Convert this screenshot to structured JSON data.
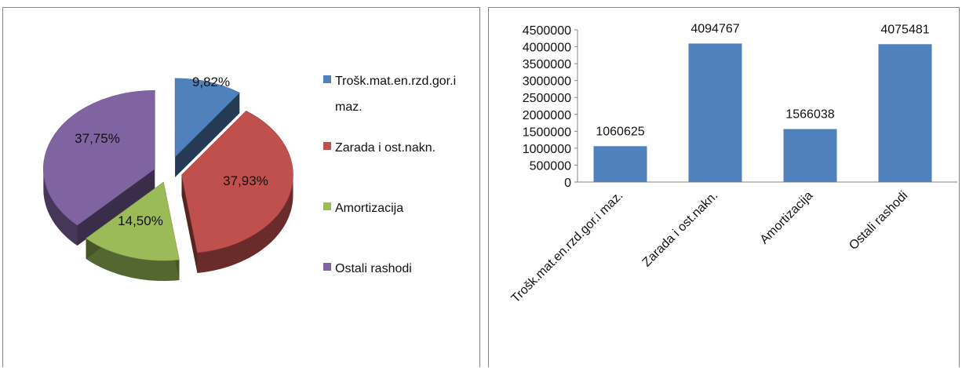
{
  "chart_data": [
    {
      "type": "pie",
      "style": "3d-exploded",
      "legend_position": "right",
      "categories": [
        "Trošk.mat.en.rzd.gor.i maz.",
        "Zarada i ost.nakn.",
        "Amortizacija",
        "Ostali rashodi"
      ],
      "legend_lines": [
        [
          "Trošk.mat.en.rzd.gor.i",
          "maz."
        ],
        [
          "Zarada i ost.nakn."
        ],
        [
          "Amortizacija"
        ],
        [
          "Ostali rashodi"
        ]
      ],
      "values": [
        9.82,
        37.93,
        14.5,
        37.75
      ],
      "data_labels": [
        "9,82%",
        "37,93%",
        "14,50%",
        "37,75%"
      ],
      "colors": [
        "#4F81BD",
        "#C0504D",
        "#9BBB59",
        "#8064A2"
      ]
    },
    {
      "type": "bar",
      "categories": [
        "Trošk.mat.en.rzd.gor.i maz.",
        "Zarada i ost.nakn.",
        "Amortizacija",
        "Ostali rashodi"
      ],
      "values": [
        1060625,
        4094767,
        1566038,
        4075481
      ],
      "data_labels": [
        "1060625",
        "4094767",
        "1566038",
        "4075481"
      ],
      "yticks": [
        "0",
        "500000",
        "1000000",
        "1500000",
        "2000000",
        "2500000",
        "3000000",
        "3500000",
        "4000000",
        "4500000"
      ],
      "ylim": [
        0,
        4500000
      ],
      "grid": false,
      "legend": false,
      "color": "#4F81BD"
    }
  ]
}
